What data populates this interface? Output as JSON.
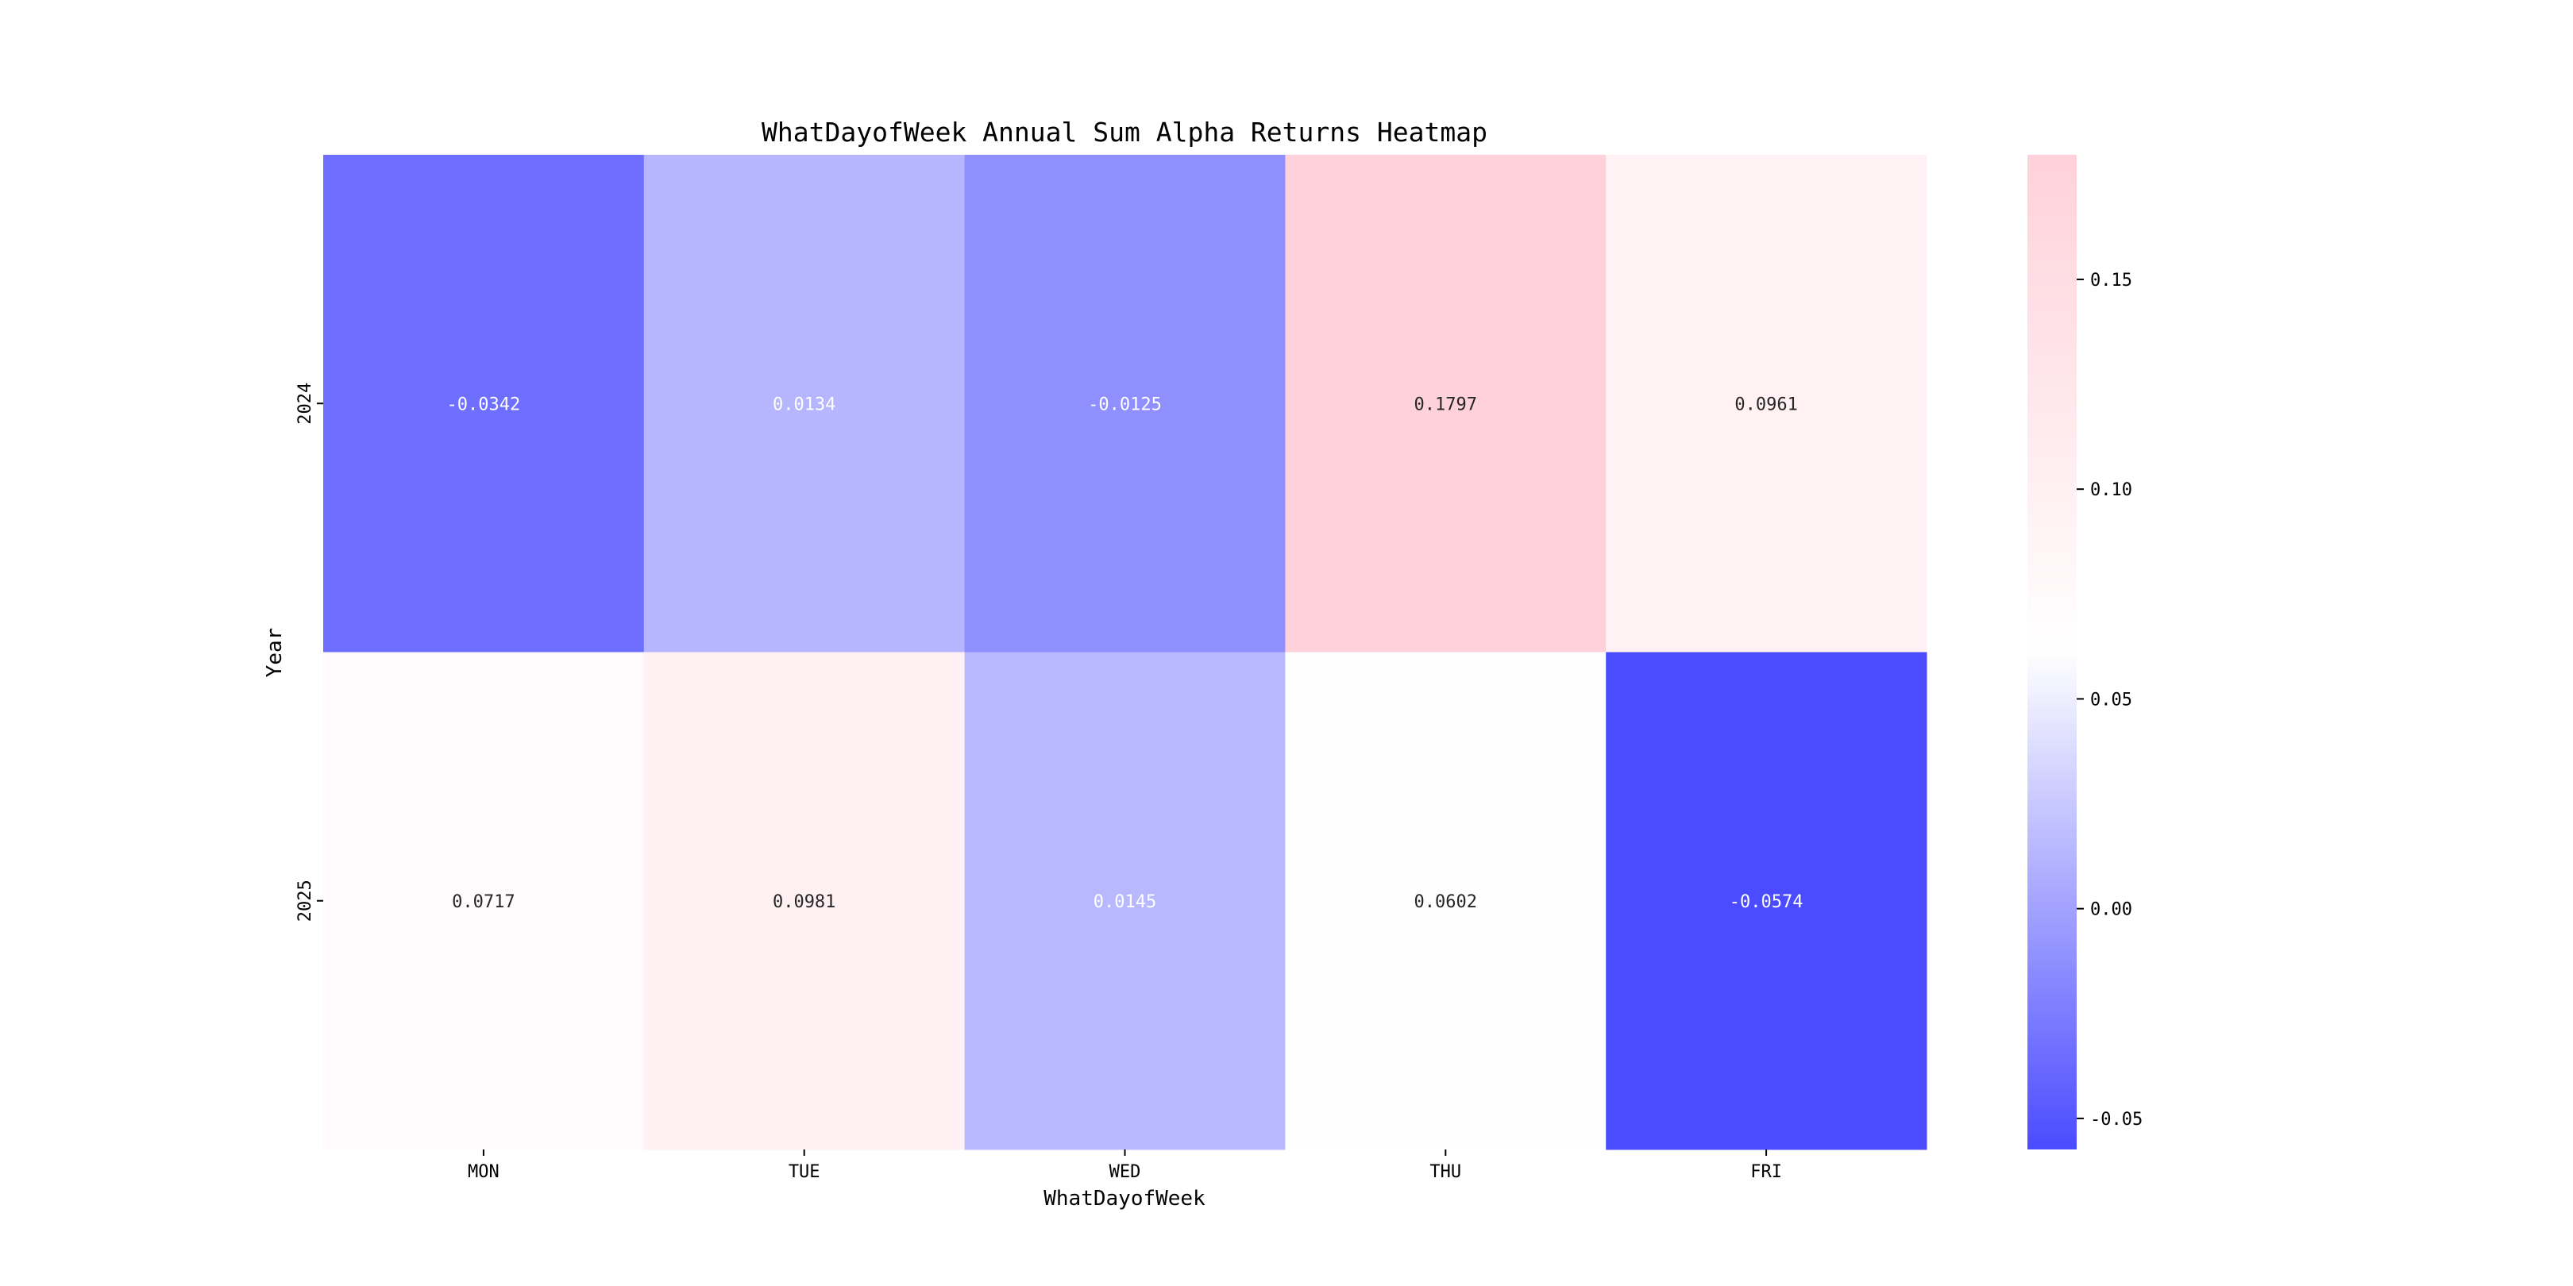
{
  "chart_data": {
    "type": "heatmap",
    "title": "WhatDayofWeek Annual Sum Alpha Returns Heatmap",
    "xlabel": "WhatDayofWeek",
    "ylabel": "Year",
    "x_categories": [
      "MON",
      "TUE",
      "WED",
      "THU",
      "FRI"
    ],
    "y_categories": [
      "2024",
      "2025"
    ],
    "values": [
      [
        -0.0342,
        0.0134,
        -0.0125,
        0.1797,
        0.0961
      ],
      [
        0.0717,
        0.0981,
        0.0145,
        0.0602,
        -0.0574
      ]
    ],
    "value_labels": [
      [
        "-0.0342",
        "0.0134",
        "-0.0125",
        "0.1797",
        "0.0961"
      ],
      [
        "0.0717",
        "0.0981",
        "0.0145",
        "0.0602",
        "-0.0574"
      ]
    ],
    "colorbar": {
      "range": [
        -0.0574,
        0.1797
      ],
      "ticks": [
        -0.05,
        0.0,
        0.05,
        0.1,
        0.15
      ],
      "tick_labels": [
        "-0.05",
        "0.00",
        "0.05",
        "0.10",
        "0.15"
      ],
      "colors": {
        "low": "#4b4bff",
        "mid": "#ffffff",
        "high": "#ffd1da"
      }
    }
  }
}
